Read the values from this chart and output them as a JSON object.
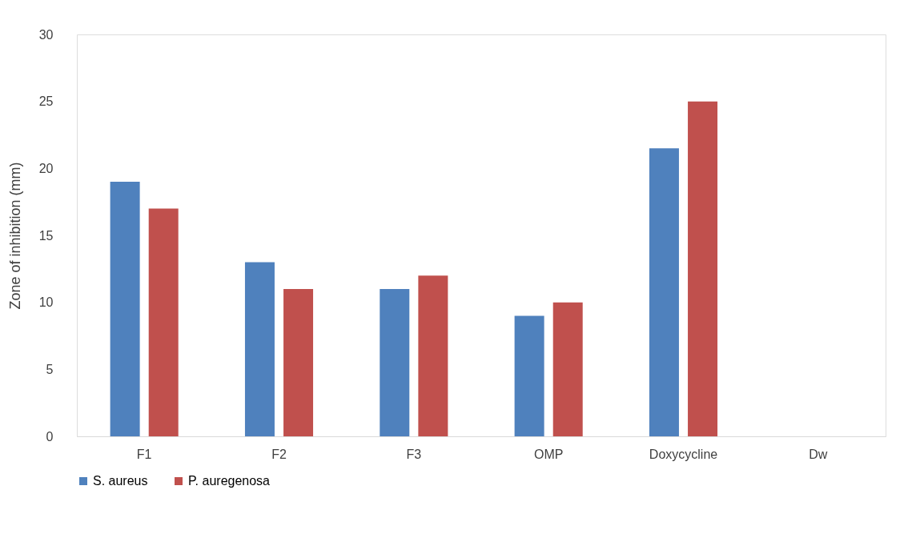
{
  "chart_data": {
    "type": "bar",
    "ylabel": "Zone of inhibition (mm)",
    "categories": [
      "F1",
      "F2",
      "F3",
      "OMP",
      "Doxycycline",
      "Dw"
    ],
    "series": [
      {
        "name": "S. aureus",
        "color": "#4f81bd",
        "values": [
          19,
          13,
          11,
          9,
          21.5,
          0
        ]
      },
      {
        "name": "P. auregenosa",
        "color": "#c0504d",
        "values": [
          17,
          11,
          12,
          10,
          25,
          0
        ]
      }
    ],
    "ylim": [
      0,
      30
    ],
    "yticks": [
      0,
      5,
      10,
      15,
      20,
      25,
      30
    ],
    "grid": false,
    "legend": "bottom"
  }
}
